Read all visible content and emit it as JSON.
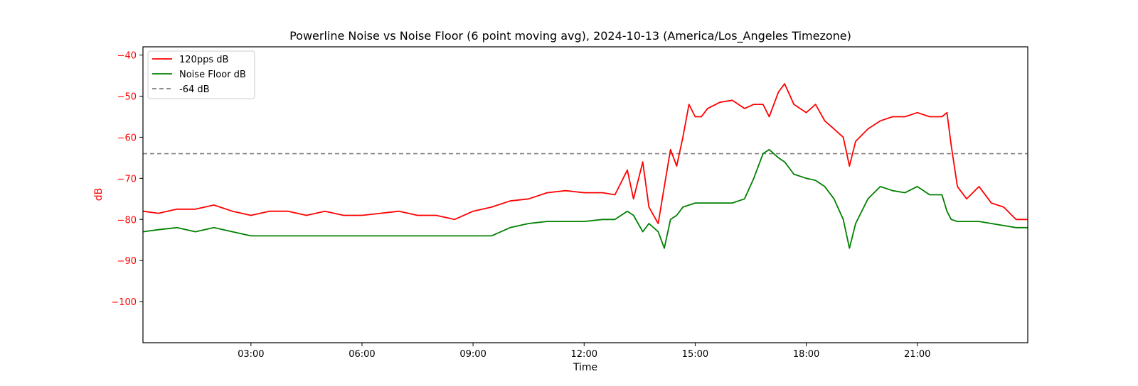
{
  "chart_data": {
    "type": "line",
    "title": "Powerline Noise vs Noise Floor (6 point moving avg), 2024-10-13 (America/Los_Angeles Timezone)",
    "xlabel": "Time",
    "ylabel": "dB",
    "xlim": [
      "00:05",
      "23:59"
    ],
    "ylim": [
      -110,
      -38
    ],
    "x_ticks": [
      "03:00",
      "06:00",
      "09:00",
      "12:00",
      "15:00",
      "18:00",
      "21:00"
    ],
    "y_ticks": [
      -40,
      -50,
      -60,
      -70,
      -80,
      -90,
      -100
    ],
    "grid": false,
    "legend_position": "top-left",
    "colors": {
      "signal": "#ff0000",
      "noise_floor": "#008000",
      "reference": "#808080",
      "y_axis": "#ff0000"
    },
    "x": [
      "00:05",
      "00:30",
      "01:00",
      "01:30",
      "02:00",
      "02:30",
      "03:00",
      "03:30",
      "04:00",
      "04:30",
      "05:00",
      "05:30",
      "06:00",
      "06:30",
      "07:00",
      "07:30",
      "08:00",
      "08:30",
      "09:00",
      "09:30",
      "10:00",
      "10:30",
      "11:00",
      "11:30",
      "12:00",
      "12:30",
      "12:50",
      "13:10",
      "13:20",
      "13:35",
      "13:45",
      "14:00",
      "14:10",
      "14:20",
      "14:30",
      "14:40",
      "14:50",
      "15:00",
      "15:10",
      "15:20",
      "15:40",
      "16:00",
      "16:20",
      "16:35",
      "16:50",
      "17:00",
      "17:15",
      "17:25",
      "17:40",
      "18:00",
      "18:15",
      "18:30",
      "18:45",
      "19:00",
      "19:10",
      "19:20",
      "19:40",
      "20:00",
      "20:20",
      "20:40",
      "21:00",
      "21:20",
      "21:40",
      "21:48",
      "21:55",
      "22:05",
      "22:20",
      "22:40",
      "23:00",
      "23:20",
      "23:40",
      "23:59"
    ],
    "series": [
      {
        "name": "120pps dB",
        "values": [
          -78,
          -78.5,
          -77.5,
          -77.5,
          -76.5,
          -78,
          -79,
          -78,
          -78,
          -79,
          -78,
          -79,
          -79,
          -78.5,
          -78,
          -79,
          -79,
          -80,
          -78,
          -77,
          -75.5,
          -75,
          -73.5,
          -73,
          -73.5,
          -73.5,
          -74,
          -68,
          -75,
          -66,
          -77,
          -81,
          -72,
          -63,
          -67,
          -60,
          -52,
          -55,
          -55,
          -53,
          -51.5,
          -51,
          -53,
          -52,
          -52,
          -55,
          -49,
          -47,
          -52,
          -54,
          -52,
          -56,
          -58,
          -60,
          -67,
          -61,
          -58,
          -56,
          -55,
          -55,
          -54,
          -55,
          -55,
          -54,
          -62,
          -72,
          -75,
          -72,
          -76,
          -77,
          -80,
          -80
        ]
      },
      {
        "name": "Noise Floor dB",
        "values": [
          -83,
          -82.5,
          -82,
          -83,
          -82,
          -83,
          -84,
          -84,
          -84,
          -84,
          -84,
          -84,
          -84,
          -84,
          -84,
          -84,
          -84,
          -84,
          -84,
          -84,
          -82,
          -81,
          -80.5,
          -80.5,
          -80.5,
          -80,
          -80,
          -78,
          -79,
          -83,
          -81,
          -83,
          -87,
          -80,
          -79,
          -77,
          -76.5,
          -76,
          -76,
          -76,
          -76,
          -76,
          -75,
          -70,
          -64,
          -63,
          -65,
          -66,
          -69,
          -70,
          -70.5,
          -72,
          -75,
          -80,
          -87,
          -81,
          -75,
          -72,
          -73,
          -73.5,
          -72,
          -74,
          -74,
          -78,
          -80,
          -80.5,
          -80.5,
          -80.5,
          -81,
          -81.5,
          -82,
          -82
        ]
      }
    ],
    "reference_line": {
      "name": "-64 dB",
      "value": -64
    },
    "legend": [
      "120pps dB",
      "Noise Floor dB",
      "-64 dB"
    ]
  }
}
